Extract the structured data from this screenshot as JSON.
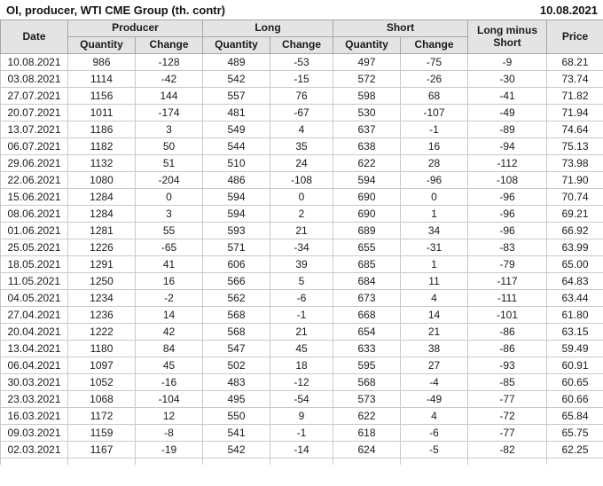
{
  "header": {
    "title": "OI, producer, WTI CME Group (th. contr)",
    "report_date": "10.08.2021"
  },
  "colors": {
    "positive_change": "#0f8a0f",
    "negative_change": "#cc1111",
    "header_background": "#e4e4e4",
    "row_background": "#ffffff"
  },
  "chart_data": {
    "type": "table",
    "title": "OI, producer, WTI CME Group (th. contr)",
    "as_of_date": "10.08.2021",
    "group_headers": {
      "date": "Date",
      "producer": "Producer",
      "long": "Long",
      "short": "Short",
      "long_minus_short": "Long minus Short",
      "price": "Price"
    },
    "sub_headers": {
      "quantity": "Quantity",
      "change": "Change"
    },
    "rows": [
      {
        "date": "10.08.2021",
        "producer_qty": "986",
        "producer_chg": -128,
        "long_qty": "489",
        "long_chg": -53,
        "short_qty": "497",
        "short_chg": -75,
        "long_minus_short": "-9",
        "price": "68.21"
      },
      {
        "date": "03.08.2021",
        "producer_qty": "1114",
        "producer_chg": -42,
        "long_qty": "542",
        "long_chg": -15,
        "short_qty": "572",
        "short_chg": -26,
        "long_minus_short": "-30",
        "price": "73.74"
      },
      {
        "date": "27.07.2021",
        "producer_qty": "1156",
        "producer_chg": 144,
        "long_qty": "557",
        "long_chg": 76,
        "short_qty": "598",
        "short_chg": 68,
        "long_minus_short": "-41",
        "price": "71.82"
      },
      {
        "date": "20.07.2021",
        "producer_qty": "1011",
        "producer_chg": -174,
        "long_qty": "481",
        "long_chg": -67,
        "short_qty": "530",
        "short_chg": -107,
        "long_minus_short": "-49",
        "price": "71.94"
      },
      {
        "date": "13.07.2021",
        "producer_qty": "1186",
        "producer_chg": 3,
        "long_qty": "549",
        "long_chg": 4,
        "short_qty": "637",
        "short_chg": -1,
        "long_minus_short": "-89",
        "price": "74.64"
      },
      {
        "date": "06.07.2021",
        "producer_qty": "1182",
        "producer_chg": 50,
        "long_qty": "544",
        "long_chg": 35,
        "short_qty": "638",
        "short_chg": 16,
        "long_minus_short": "-94",
        "price": "75.13"
      },
      {
        "date": "29.06.2021",
        "producer_qty": "1132",
        "producer_chg": 51,
        "long_qty": "510",
        "long_chg": 24,
        "short_qty": "622",
        "short_chg": 28,
        "long_minus_short": "-112",
        "price": "73.98"
      },
      {
        "date": "22.06.2021",
        "producer_qty": "1080",
        "producer_chg": -204,
        "long_qty": "486",
        "long_chg": -108,
        "short_qty": "594",
        "short_chg": -96,
        "long_minus_short": "-108",
        "price": "71.90"
      },
      {
        "date": "15.06.2021",
        "producer_qty": "1284",
        "producer_chg": 0,
        "long_qty": "594",
        "long_chg": 0,
        "short_qty": "690",
        "short_chg": 0,
        "long_minus_short": "-96",
        "price": "70.74"
      },
      {
        "date": "08.06.2021",
        "producer_qty": "1284",
        "producer_chg": 3,
        "long_qty": "594",
        "long_chg": 2,
        "short_qty": "690",
        "short_chg": 1,
        "long_minus_short": "-96",
        "price": "69.21"
      },
      {
        "date": "01.06.2021",
        "producer_qty": "1281",
        "producer_chg": 55,
        "long_qty": "593",
        "long_chg": 21,
        "short_qty": "689",
        "short_chg": 34,
        "long_minus_short": "-96",
        "price": "66.92"
      },
      {
        "date": "25.05.2021",
        "producer_qty": "1226",
        "producer_chg": -65,
        "long_qty": "571",
        "long_chg": -34,
        "short_qty": "655",
        "short_chg": -31,
        "long_minus_short": "-83",
        "price": "63.99"
      },
      {
        "date": "18.05.2021",
        "producer_qty": "1291",
        "producer_chg": 41,
        "long_qty": "606",
        "long_chg": 39,
        "short_qty": "685",
        "short_chg": 1,
        "long_minus_short": "-79",
        "price": "65.00"
      },
      {
        "date": "11.05.2021",
        "producer_qty": "1250",
        "producer_chg": 16,
        "long_qty": "566",
        "long_chg": 5,
        "short_qty": "684",
        "short_chg": 11,
        "long_minus_short": "-117",
        "price": "64.83"
      },
      {
        "date": "04.05.2021",
        "producer_qty": "1234",
        "producer_chg": -2,
        "long_qty": "562",
        "long_chg": -6,
        "short_qty": "673",
        "short_chg": 4,
        "long_minus_short": "-111",
        "price": "63.44"
      },
      {
        "date": "27.04.2021",
        "producer_qty": "1236",
        "producer_chg": 14,
        "long_qty": "568",
        "long_chg": -1,
        "short_qty": "668",
        "short_chg": 14,
        "long_minus_short": "-101",
        "price": "61.80"
      },
      {
        "date": "20.04.2021",
        "producer_qty": "1222",
        "producer_chg": 42,
        "long_qty": "568",
        "long_chg": 21,
        "short_qty": "654",
        "short_chg": 21,
        "long_minus_short": "-86",
        "price": "63.15"
      },
      {
        "date": "13.04.2021",
        "producer_qty": "1180",
        "producer_chg": 84,
        "long_qty": "547",
        "long_chg": 45,
        "short_qty": "633",
        "short_chg": 38,
        "long_minus_short": "-86",
        "price": "59.49"
      },
      {
        "date": "06.04.2021",
        "producer_qty": "1097",
        "producer_chg": 45,
        "long_qty": "502",
        "long_chg": 18,
        "short_qty": "595",
        "short_chg": 27,
        "long_minus_short": "-93",
        "price": "60.91"
      },
      {
        "date": "30.03.2021",
        "producer_qty": "1052",
        "producer_chg": -16,
        "long_qty": "483",
        "long_chg": -12,
        "short_qty": "568",
        "short_chg": -4,
        "long_minus_short": "-85",
        "price": "60.65"
      },
      {
        "date": "23.03.2021",
        "producer_qty": "1068",
        "producer_chg": -104,
        "long_qty": "495",
        "long_chg": -54,
        "short_qty": "573",
        "short_chg": -49,
        "long_minus_short": "-77",
        "price": "60.66"
      },
      {
        "date": "16.03.2021",
        "producer_qty": "1172",
        "producer_chg": 12,
        "long_qty": "550",
        "long_chg": 9,
        "short_qty": "622",
        "short_chg": 4,
        "long_minus_short": "-72",
        "price": "65.84"
      },
      {
        "date": "09.03.2021",
        "producer_qty": "1159",
        "producer_chg": -8,
        "long_qty": "541",
        "long_chg": -1,
        "short_qty": "618",
        "short_chg": -6,
        "long_minus_short": "-77",
        "price": "65.75"
      },
      {
        "date": "02.03.2021",
        "producer_qty": "1167",
        "producer_chg": -19,
        "long_qty": "542",
        "long_chg": -14,
        "short_qty": "624",
        "short_chg": -5,
        "long_minus_short": "-82",
        "price": "62.25"
      }
    ]
  }
}
